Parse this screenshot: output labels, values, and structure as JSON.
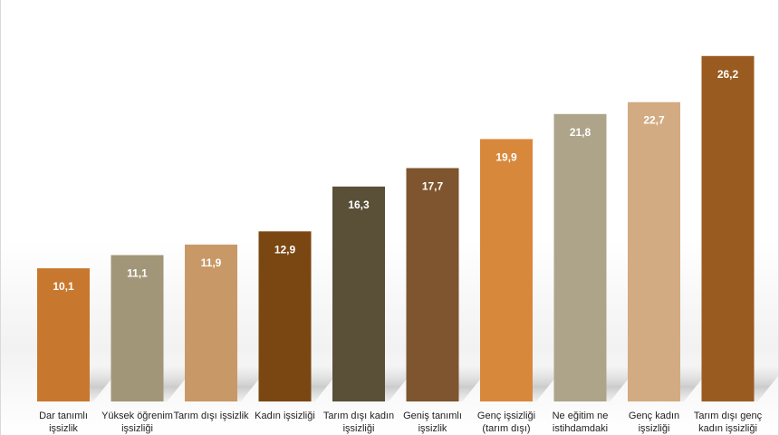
{
  "chart_data": {
    "type": "bar",
    "title": "",
    "xlabel": "",
    "ylabel": "",
    "ylim": [
      0,
      28
    ],
    "grid": false,
    "legend": "none",
    "categories": [
      [
        "Dar tanımlı",
        "işsizlik"
      ],
      [
        "Yüksek öğrenim",
        "işsizliği"
      ],
      [
        "Tarım dışı işsizlik"
      ],
      [
        "Kadın işsizliği"
      ],
      [
        "Tarım dışı kadın",
        "işsizliği"
      ],
      [
        "Geniş tanımlı",
        "işsizlik"
      ],
      [
        "Genç işsizliği",
        "(tarım dışı)"
      ],
      [
        "Ne eğitim ne",
        "istihdamdaki"
      ],
      [
        "Genç kadın",
        "işsizliği"
      ],
      [
        "Tarım dışı genç",
        "kadın işsizliği"
      ]
    ],
    "values": [
      10.1,
      11.1,
      11.9,
      12.9,
      16.3,
      17.7,
      19.9,
      21.8,
      22.7,
      26.2
    ],
    "value_labels": [
      "10,1",
      "11,1",
      "11,9",
      "12,9",
      "16,3",
      "17,7",
      "19,9",
      "21,8",
      "22,7",
      "26,2"
    ],
    "colors": [
      "#c8782e",
      "#a29679",
      "#c99867",
      "#7a4712",
      "#5a5038",
      "#7e552e",
      "#d8883b",
      "#aea48a",
      "#d2ab82",
      "#9a5b20"
    ]
  }
}
